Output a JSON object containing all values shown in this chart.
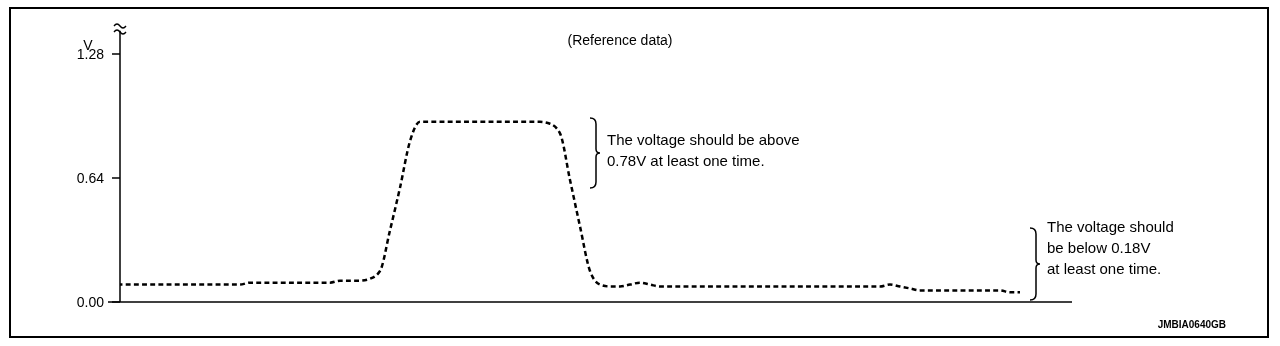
{
  "chart_data": {
    "type": "line",
    "title": "(Reference data)",
    "ylabel": "V",
    "categories": [
      null,
      null,
      null,
      null,
      null,
      null,
      null,
      null,
      null,
      null,
      null,
      null,
      null,
      null,
      null,
      null,
      null,
      null,
      null,
      null,
      null,
      null,
      null,
      null,
      null,
      null,
      null,
      null,
      null,
      null,
      null,
      null,
      null,
      null,
      null,
      null,
      null,
      null,
      null,
      null,
      null,
      null,
      null,
      null,
      null,
      null,
      null,
      null,
      null,
      null,
      null,
      null,
      null,
      null,
      null,
      null,
      null,
      null,
      null,
      null,
      null,
      null,
      null,
      null,
      null,
      null,
      null,
      null,
      null,
      null,
      null,
      null,
      null,
      null,
      null,
      null,
      null,
      null,
      null,
      null,
      null,
      null,
      null,
      null,
      null,
      null,
      null,
      null,
      null,
      null,
      null
    ],
    "series": [
      {
        "color": "#000000",
        "values": [
          0.09,
          0.09,
          0.09,
          0.09,
          0.09,
          0.09,
          0.09,
          0.09,
          0.09,
          0.09,
          0.09,
          0.09,
          0.09,
          0.1,
          0.1,
          0.1,
          0.1,
          0.1,
          0.1,
          0.1,
          0.1,
          0.1,
          0.11,
          0.11,
          0.11,
          0.12,
          0.16,
          0.37,
          0.59,
          0.83,
          0.93,
          0.93,
          0.93,
          0.93,
          0.93,
          0.93,
          0.93,
          0.93,
          0.93,
          0.93,
          0.93,
          0.93,
          0.93,
          0.92,
          0.87,
          0.63,
          0.39,
          0.16,
          0.09,
          0.08,
          0.08,
          0.09,
          0.1,
          0.09,
          0.08,
          0.08,
          0.08,
          0.08,
          0.08,
          0.08,
          0.08,
          0.08,
          0.08,
          0.08,
          0.08,
          0.08,
          0.08,
          0.08,
          0.08,
          0.08,
          0.08,
          0.08,
          0.08,
          0.08,
          0.08,
          0.08,
          0.08,
          0.09,
          0.08,
          0.07,
          0.06,
          0.06,
          0.06,
          0.06,
          0.06,
          0.06,
          0.06,
          0.06,
          0.06,
          0.05,
          0.05
        ]
      }
    ],
    "ylim": [
      0,
      1.4
    ],
    "yticks": [
      {
        "value": 0,
        "label": "0.00"
      },
      {
        "value": 0.64,
        "label": "0.64"
      },
      {
        "value": 1.28,
        "label": "1.28"
      }
    ],
    "tick_labels": "y",
    "grid": false,
    "marker": "none",
    "line_style": "dashed",
    "annotations": [
      "The voltage should be above\n0.78V at least one time.",
      "The voltage should\nbe below 0.18V\nat least one time.",
      "JMBIA0640GB"
    ]
  }
}
